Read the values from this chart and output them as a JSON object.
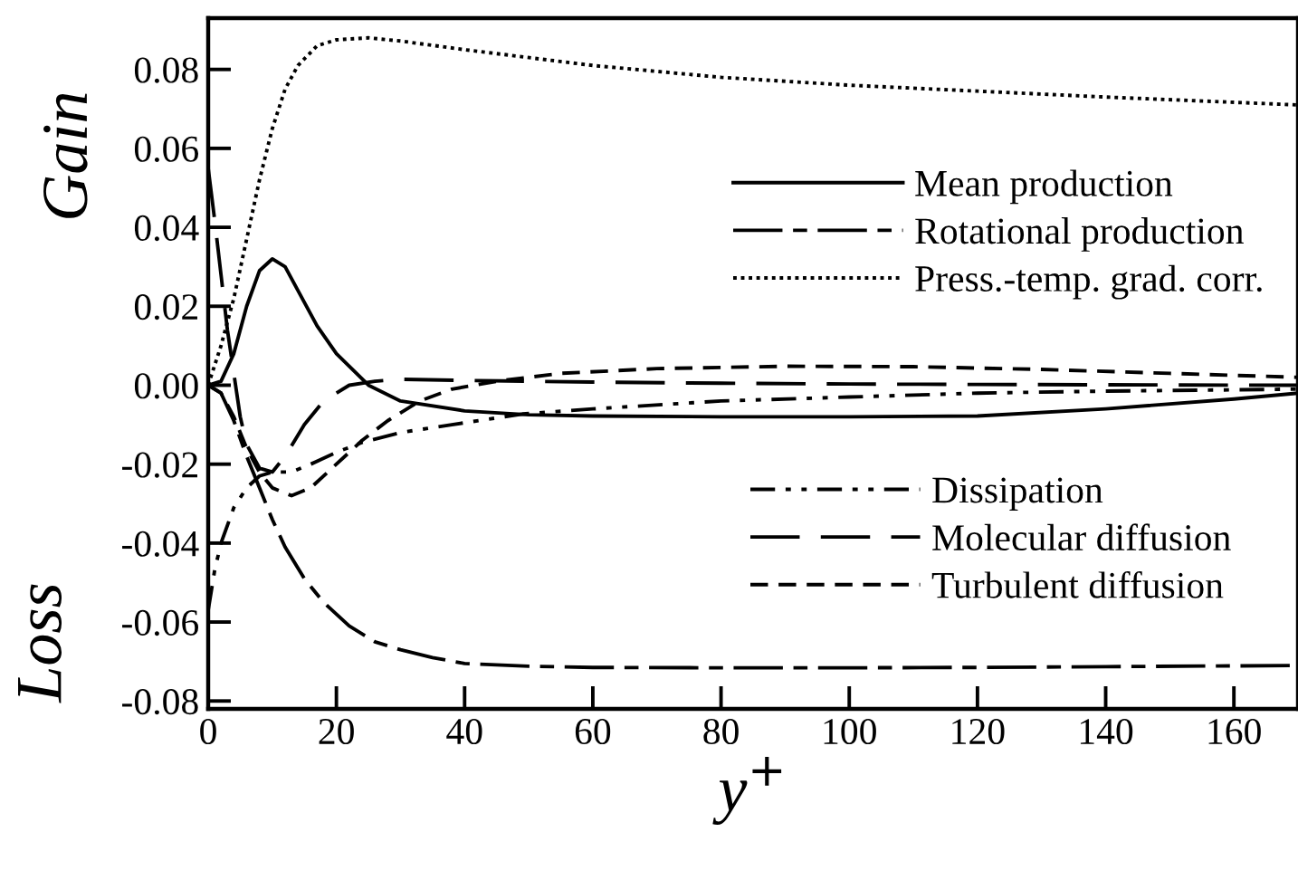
{
  "chart_data": {
    "type": "line",
    "xlabel": "y$^{+}$",
    "ylabel": "Gain",
    "annotations": [
      "Loss"
    ],
    "xlim": [
      0,
      170
    ],
    "xticks": [
      0,
      20,
      40,
      60,
      80,
      100,
      120,
      140,
      160
    ],
    "ylim": [
      -0.082,
      0.093
    ],
    "yticks": [
      {
        "value": -0.08,
        "label": "-0.08"
      },
      {
        "value": -0.06,
        "label": "-0.06"
      },
      {
        "value": -0.04,
        "label": "-0.04"
      },
      {
        "value": -0.02,
        "label": "-0.02"
      },
      {
        "value": 0,
        "label": "0.00"
      },
      {
        "value": 0.02,
        "label": "0.02"
      },
      {
        "value": 0.04,
        "label": "0.04"
      },
      {
        "value": 0.06,
        "label": "0.06"
      },
      {
        "value": 0.08,
        "label": "0.08"
      }
    ],
    "grid": false,
    "legend": "right",
    "series": [
      {
        "name": "Mean production",
        "color": "#000000",
        "line_style": "solid",
        "x": [
          0,
          2,
          4,
          6,
          8,
          10,
          12,
          14,
          17,
          20,
          25,
          30,
          40,
          50,
          60,
          80,
          100,
          120,
          140,
          160,
          170
        ],
        "values": [
          0,
          0.001,
          0.008,
          0.02,
          0.029,
          0.032,
          0.03,
          0.024,
          0.015,
          0.008,
          0.0,
          -0.004,
          -0.0065,
          -0.0075,
          -0.0078,
          -0.008,
          -0.008,
          -0.0078,
          -0.006,
          -0.0035,
          -0.002
        ]
      },
      {
        "name": "Rotational production",
        "color": "#000000",
        "line_style": "dashdot",
        "x": [
          0,
          2,
          4,
          6,
          8,
          10,
          12,
          15,
          18,
          22,
          26,
          30,
          35,
          40,
          50,
          60,
          80,
          100,
          120,
          140,
          170
        ],
        "values": [
          0,
          -0.002,
          -0.009,
          -0.018,
          -0.026,
          -0.034,
          -0.041,
          -0.049,
          -0.055,
          -0.061,
          -0.065,
          -0.067,
          -0.069,
          -0.0705,
          -0.0712,
          -0.0715,
          -0.0716,
          -0.0716,
          -0.0715,
          -0.0713,
          -0.071
        ]
      },
      {
        "name": "Press.-temp. grad. corr.",
        "color": "#000000",
        "line_style": "dotted",
        "x": [
          0,
          2,
          4,
          6,
          8,
          10,
          12,
          14,
          17,
          20,
          25,
          30,
          40,
          60,
          80,
          100,
          120,
          140,
          170
        ],
        "values": [
          0,
          0.01,
          0.022,
          0.037,
          0.052,
          0.065,
          0.075,
          0.081,
          0.086,
          0.0875,
          0.088,
          0.0872,
          0.085,
          0.081,
          0.078,
          0.076,
          0.0745,
          0.073,
          0.071
        ]
      },
      {
        "name": "Dissipation",
        "color": "#000000",
        "line_style": "dashdotdot",
        "x": [
          0,
          1,
          2,
          4,
          6,
          8,
          10,
          13,
          16,
          20,
          24,
          30,
          38,
          49,
          60,
          80,
          100,
          120,
          140,
          170
        ],
        "values": [
          -0.057,
          -0.047,
          -0.04,
          -0.031,
          -0.026,
          -0.023,
          -0.022,
          -0.022,
          -0.02,
          -0.017,
          -0.0145,
          -0.012,
          -0.01,
          -0.0073,
          -0.006,
          -0.004,
          -0.003,
          -0.002,
          -0.0015,
          -0.001
        ]
      },
      {
        "name": "Molecular diffusion",
        "color": "#000000",
        "line_style": "longdash",
        "x": [
          0,
          1,
          2,
          3,
          4,
          5,
          6,
          8,
          10,
          12,
          15,
          18,
          22,
          26,
          30,
          40,
          60,
          80,
          100,
          120,
          140,
          170
        ],
        "values": [
          0.055,
          0.042,
          0.028,
          0.014,
          0.003,
          -0.008,
          -0.015,
          -0.021,
          -0.022,
          -0.018,
          -0.01,
          -0.004,
          0.0,
          0.001,
          0.0015,
          0.0012,
          0.0008,
          0.0005,
          0.0003,
          0.0002,
          0.0001,
          0
        ]
      },
      {
        "name": "Turbulent diffusion",
        "color": "#000000",
        "line_style": "dashed",
        "x": [
          0,
          2,
          4,
          6,
          8,
          10,
          13,
          16,
          20,
          24,
          28,
          33,
          38,
          45,
          55,
          70,
          90,
          110,
          130,
          150,
          170
        ],
        "values": [
          0,
          -0.002,
          -0.008,
          -0.016,
          -0.022,
          -0.026,
          -0.028,
          -0.026,
          -0.02,
          -0.014,
          -0.009,
          -0.004,
          -0.001,
          0.001,
          0.003,
          0.0042,
          0.0048,
          0.0047,
          0.004,
          0.003,
          0.002
        ]
      }
    ]
  }
}
